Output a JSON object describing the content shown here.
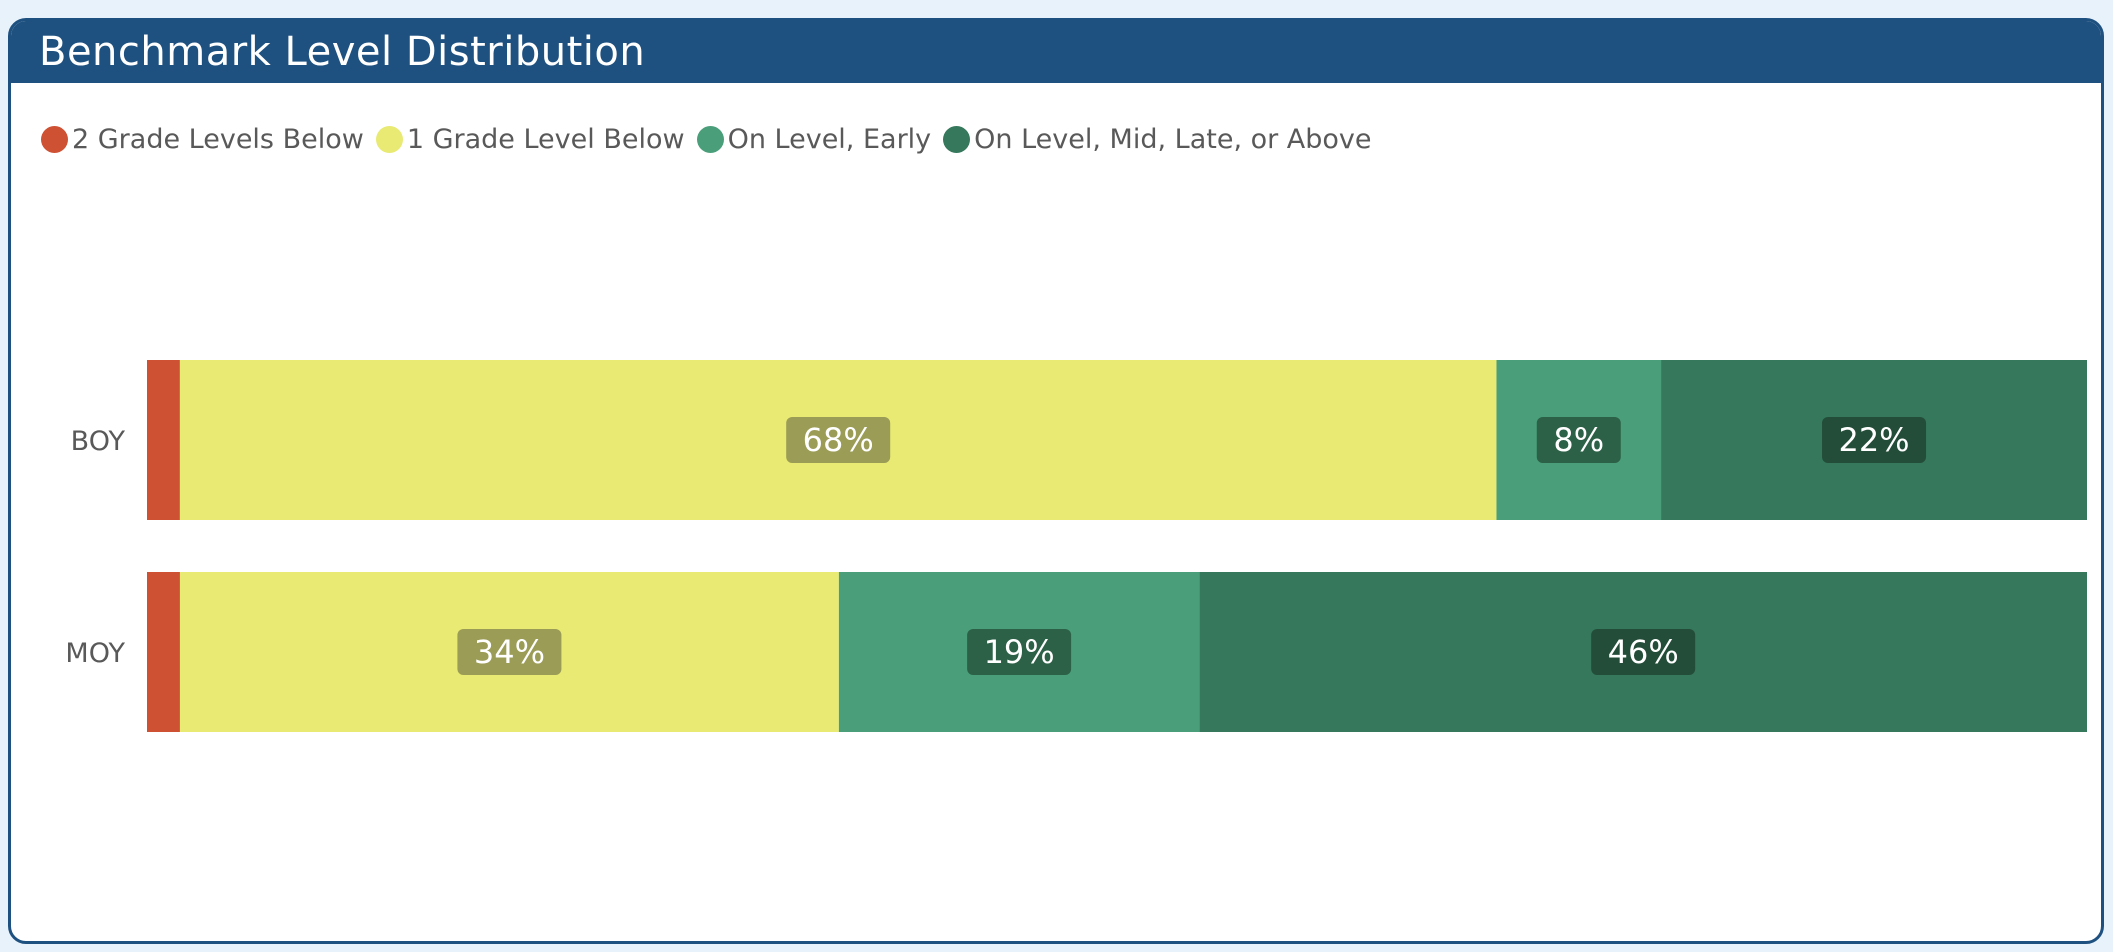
{
  "chart_data": {
    "type": "bar",
    "orientation": "horizontal",
    "stacked": "100%",
    "title": "Benchmark Level Distribution",
    "categories": [
      "BOY",
      "MOY"
    ],
    "legend_position": "top-left",
    "grid": false,
    "xlim": [
      0,
      100
    ],
    "series": [
      {
        "name": "2 Grade Levels Below",
        "color": "#cf5133",
        "values": [
          1.7,
          1.7
        ],
        "labels": [
          "",
          ""
        ]
      },
      {
        "name": "1 Grade Level Below",
        "color": "#e8ea74",
        "values": [
          68,
          34
        ],
        "labels": [
          "68%",
          "34%"
        ]
      },
      {
        "name": "On Level, Early",
        "color": "#4a9f7a",
        "values": [
          8.5,
          18.6
        ],
        "labels": [
          "8%",
          "19%"
        ]
      },
      {
        "name": "On Level, Mid, Late, or Above",
        "color": "#35785b",
        "values": [
          22,
          45.8
        ],
        "labels": [
          "22%",
          "46%"
        ]
      }
    ]
  },
  "colors": {
    "header": "#1f5180",
    "label_box_on_yellow": "#9b9c55",
    "label_box_on_green": "#2c6147",
    "label_box_on_darkgreen": "#244d39"
  }
}
